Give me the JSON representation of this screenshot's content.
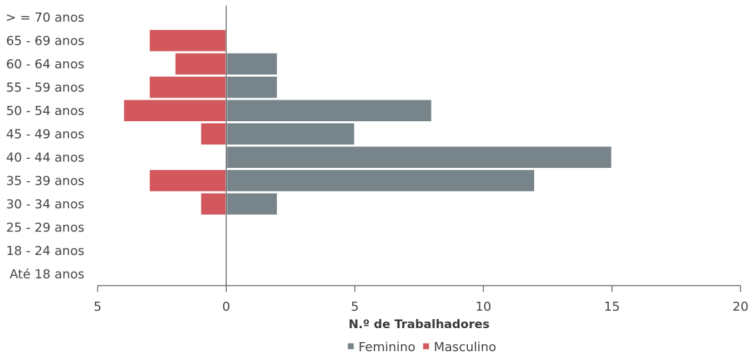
{
  "chart_data": {
    "type": "bar",
    "orientation": "horizontal",
    "categories": [
      "Até 18 anos",
      "18 - 24 anos",
      "25 - 29 anos",
      "30 - 34 anos",
      "35 - 39 anos",
      "40 - 44 anos",
      "45 - 49 anos",
      "50 - 54 anos",
      "55 - 59 anos",
      "60 - 64 anos",
      "65 - 69 anos",
      "> = 70 anos"
    ],
    "series": [
      {
        "name": "Feminino",
        "values": [
          0,
          0,
          0,
          2,
          12,
          15,
          5,
          8,
          2,
          2,
          0,
          0
        ],
        "color": "#77848a"
      },
      {
        "name": "Masculino",
        "values": [
          0,
          0,
          0,
          -1,
          -3,
          0,
          -1,
          -4,
          -3,
          -2,
          -3,
          0
        ],
        "color": "#d2585d"
      }
    ],
    "x_ticks": [
      -5,
      0,
      5,
      10,
      15,
      20
    ],
    "x_tick_labels": [
      "5",
      "0",
      "5",
      "10",
      "15",
      "20"
    ],
    "xlim": [
      -5,
      20
    ],
    "xlabel": "N.º de Trabalhadores",
    "legend_position": "bottom",
    "grid": false
  },
  "legend": {
    "items": [
      {
        "label": "Feminino",
        "color": "#77848a"
      },
      {
        "label": "Masculino",
        "color": "#d2585d"
      }
    ]
  }
}
